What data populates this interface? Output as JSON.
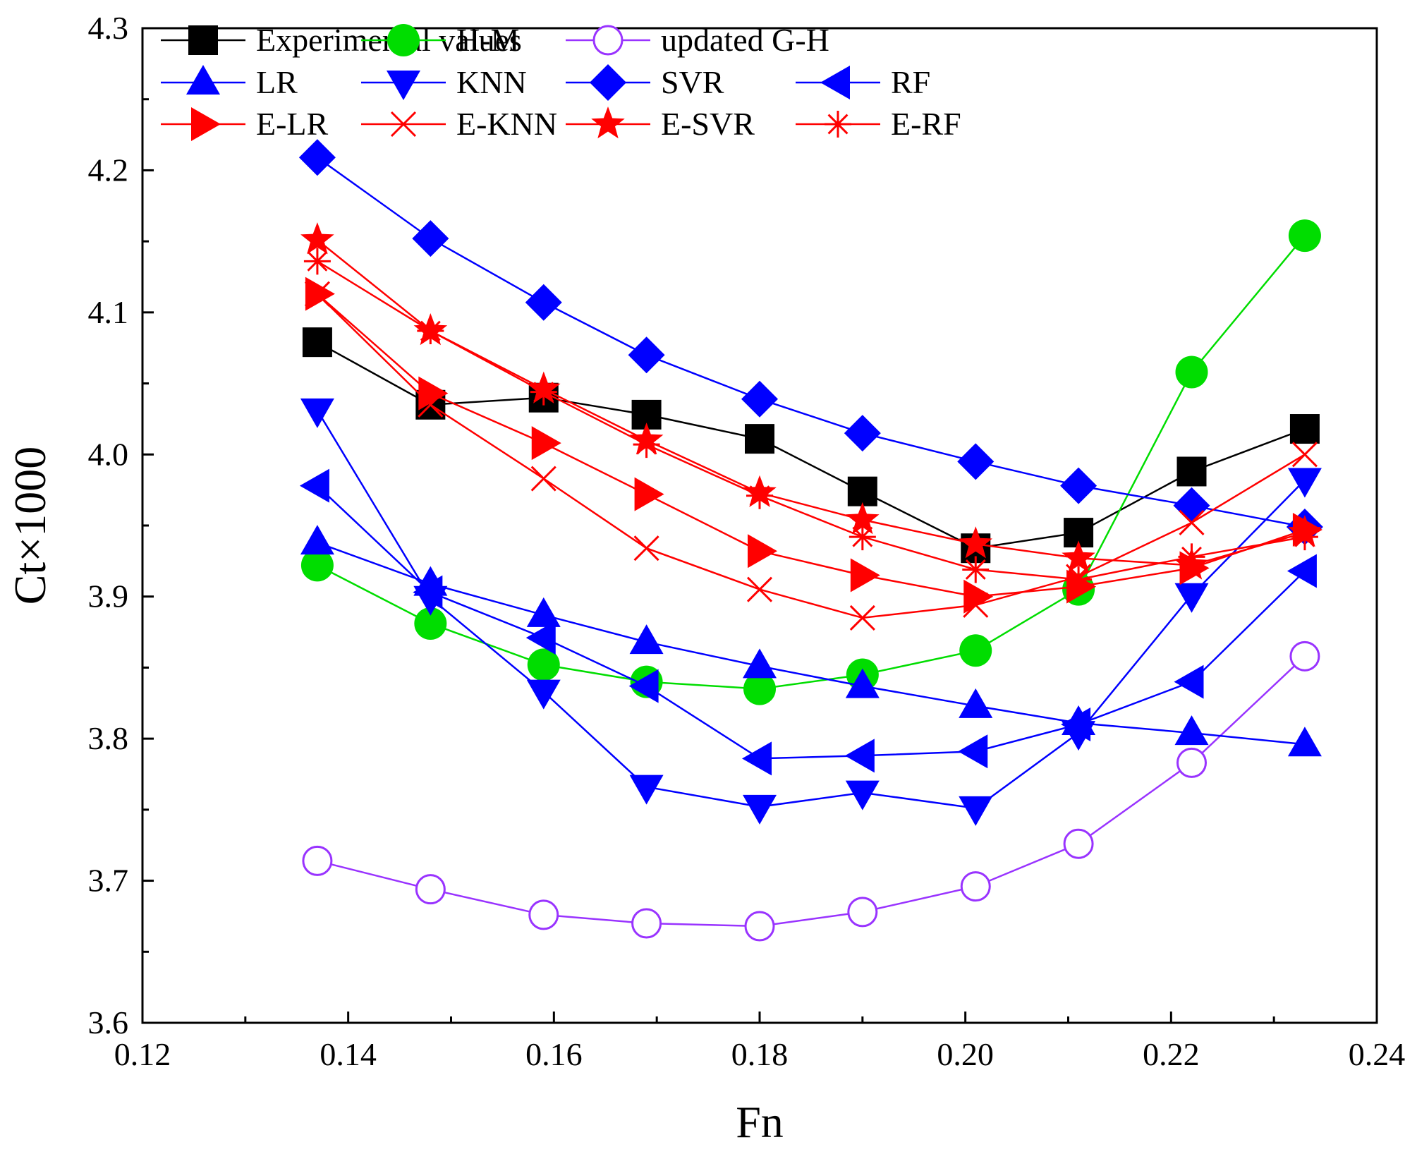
{
  "chart_data": {
    "type": "line",
    "title": "",
    "xlabel": "Fn",
    "ylabel": "Ct×1000",
    "xlim": [
      0.12,
      0.24
    ],
    "ylim": [
      3.6,
      4.3
    ],
    "xticks": [
      "0.12",
      "0.14",
      "0.16",
      "0.18",
      "0.20",
      "0.22",
      "0.24"
    ],
    "yticks": [
      "3.6",
      "3.7",
      "3.8",
      "3.9",
      "4.0",
      "4.1",
      "4.2",
      "4.3"
    ],
    "x": [
      0.137,
      0.148,
      0.159,
      0.169,
      0.18,
      0.19,
      0.201,
      0.211,
      0.222,
      0.233
    ],
    "legend_position": "top-left",
    "series": [
      {
        "name": "Experimental values",
        "color": "#000000",
        "marker": "square",
        "values": [
          4.079,
          4.035,
          4.04,
          4.028,
          4.011,
          3.974,
          3.934,
          3.945,
          3.988,
          4.018
        ]
      },
      {
        "name": "H-M",
        "color": "#00dd00",
        "marker": "circle",
        "values": [
          3.922,
          3.881,
          3.852,
          3.84,
          3.835,
          3.845,
          3.862,
          3.905,
          4.058,
          4.154
        ]
      },
      {
        "name": "updated G-H",
        "color": "#9933ff",
        "marker": "circle-open",
        "values": [
          3.714,
          3.694,
          3.676,
          3.67,
          3.668,
          3.678,
          3.696,
          3.726,
          3.783,
          3.858
        ]
      },
      {
        "name": "LR",
        "color": "#0000ff",
        "marker": "triangle-up",
        "values": [
          3.938,
          3.909,
          3.887,
          3.868,
          3.851,
          3.837,
          3.823,
          3.811,
          3.804,
          3.796
        ]
      },
      {
        "name": "KNN",
        "color": "#0000ff",
        "marker": "triangle-down",
        "values": [
          4.031,
          3.899,
          3.833,
          3.766,
          3.752,
          3.762,
          3.751,
          3.804,
          3.901,
          3.982
        ]
      },
      {
        "name": "SVR",
        "color": "#0000ff",
        "marker": "diamond",
        "values": [
          4.209,
          4.152,
          4.107,
          4.07,
          4.039,
          4.015,
          3.995,
          3.978,
          3.964,
          3.949
        ]
      },
      {
        "name": "RF",
        "color": "#0000ff",
        "marker": "triangle-left",
        "values": [
          3.978,
          3.903,
          3.871,
          3.837,
          3.786,
          3.788,
          3.791,
          3.81,
          3.84,
          3.918
        ]
      },
      {
        "name": "E-LR",
        "color": "#ff0000",
        "marker": "triangle-right",
        "values": [
          4.113,
          4.043,
          4.008,
          3.972,
          3.932,
          3.915,
          3.9,
          3.907,
          3.92,
          3.947
        ]
      },
      {
        "name": "E-KNN",
        "color": "#ff0000",
        "marker": "x",
        "values": [
          4.113,
          4.035,
          3.983,
          3.934,
          3.905,
          3.885,
          3.894,
          3.914,
          3.952,
          4.0
        ]
      },
      {
        "name": "E-SVR",
        "color": "#ff0000",
        "marker": "star",
        "values": [
          4.151,
          4.087,
          4.046,
          4.01,
          3.973,
          3.954,
          3.937,
          3.927,
          3.922,
          3.945
        ]
      },
      {
        "name": "E-RF",
        "color": "#ff0000",
        "marker": "asterisk",
        "values": [
          4.136,
          4.087,
          4.044,
          4.007,
          3.971,
          3.942,
          3.919,
          3.912,
          3.928,
          3.942
        ]
      }
    ]
  }
}
